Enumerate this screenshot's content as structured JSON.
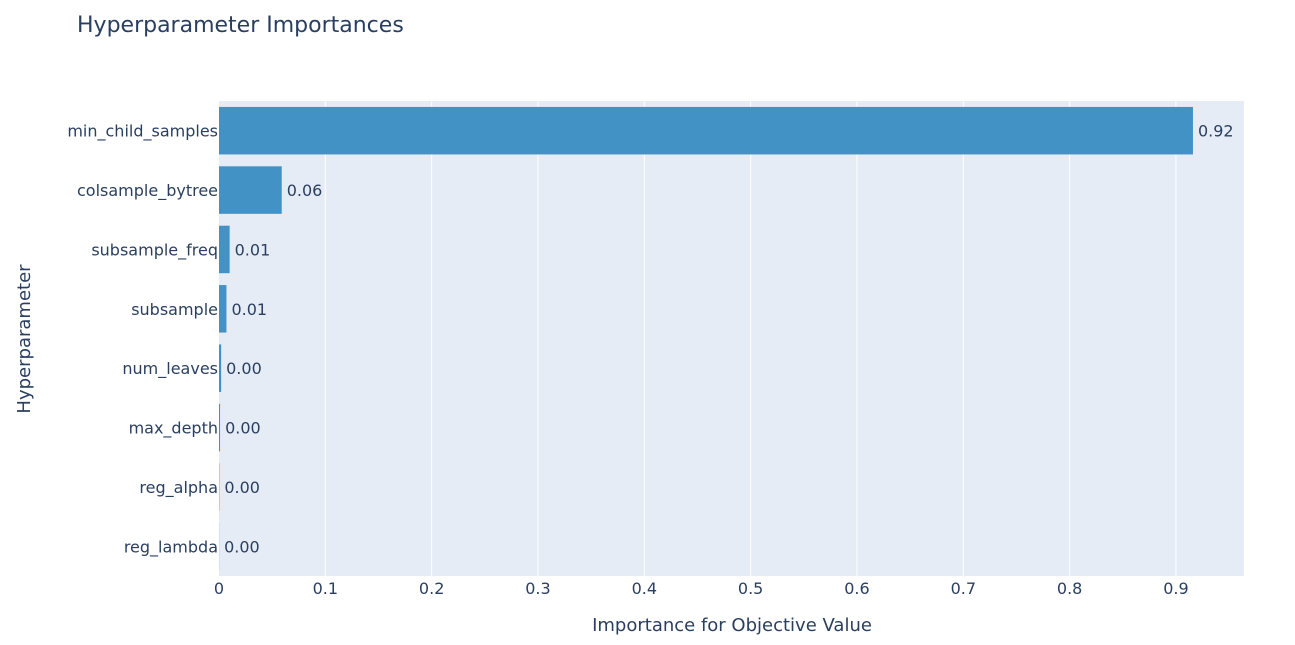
{
  "chart_data": {
    "type": "bar",
    "orientation": "horizontal",
    "title": "Hyperparameter Importances",
    "xlabel": "Importance for Objective Value",
    "ylabel": "Hyperparameter",
    "categories": [
      "min_child_samples",
      "colsample_bytree",
      "subsample_freq",
      "subsample",
      "num_leaves",
      "max_depth",
      "reg_alpha",
      "reg_lambda"
    ],
    "values": [
      0.916,
      0.059,
      0.01,
      0.007,
      0.002,
      0.001,
      0.0003,
      0.0001
    ],
    "value_labels": [
      "0.92",
      "0.06",
      "0.01",
      "0.01",
      "0.00",
      "0.00",
      "0.00",
      "0.00"
    ],
    "xlim": [
      0,
      0.964
    ],
    "xticks": [
      0,
      0.1,
      0.2,
      0.3,
      0.4,
      0.5,
      0.6,
      0.7,
      0.8,
      0.9
    ],
    "xtick_labels": [
      "0",
      "0.1",
      "0.2",
      "0.3",
      "0.4",
      "0.5",
      "0.6",
      "0.7",
      "0.8",
      "0.9"
    ],
    "grid": true,
    "colors": {
      "bar": "#4292c6",
      "plot_background": "#e5ecf6",
      "grid": "#ffffff",
      "text": "#2a3f5f"
    }
  }
}
